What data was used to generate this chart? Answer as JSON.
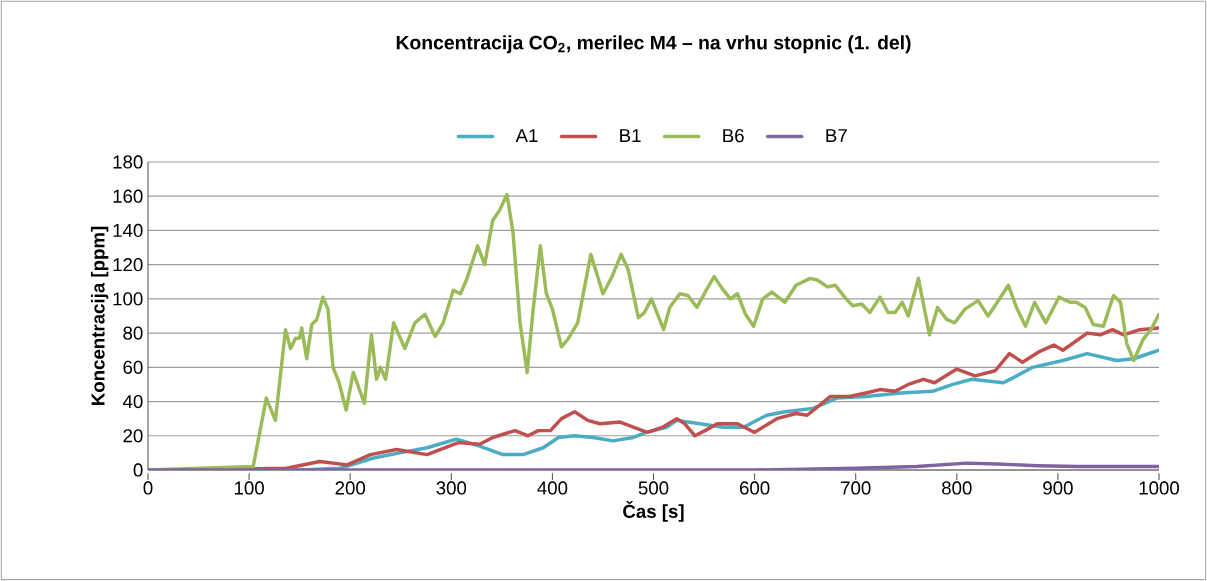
{
  "chart_data": {
    "type": "line",
    "title": "Koncentracija CO$_{2}$, merilec M4 – na vrhu stopnic (1. del)",
    "xlabel": "Čas [s]",
    "ylabel": "Koncentracija [ppm]",
    "xlim": [
      0,
      1000
    ],
    "ylim": [
      0,
      180
    ],
    "xticks": [
      0,
      100,
      200,
      300,
      400,
      500,
      600,
      700,
      800,
      900,
      1000
    ],
    "yticks": [
      0,
      20,
      40,
      60,
      80,
      100,
      120,
      140,
      160,
      180
    ],
    "grid": "y",
    "legend": "top",
    "marker": "none",
    "line_style": "solid",
    "series": [
      {
        "name": "A1",
        "color": "#4bacc6",
        "x": [
          0,
          150,
          190,
          223,
          249,
          276,
          305,
          328,
          351,
          371,
          391,
          406,
          422,
          440,
          460,
          480,
          493,
          513,
          523,
          546,
          569,
          589,
          612,
          630,
          658,
          681,
          710,
          744,
          776,
          796,
          815,
          846,
          856,
          875,
          905,
          929,
          958,
          975,
          1000
        ],
        "values": [
          0,
          0,
          1,
          7,
          10,
          13,
          18,
          14,
          9,
          9,
          13,
          19,
          20,
          19,
          17,
          19,
          22,
          25,
          29,
          27,
          25,
          25,
          32,
          34,
          36,
          42,
          43,
          45,
          46,
          50,
          53,
          51,
          54,
          60,
          64,
          68,
          64,
          65,
          70
        ]
      },
      {
        "name": "B1",
        "color": "#c0504d",
        "x": [
          0,
          137,
          170,
          197,
          220,
          246,
          276,
          307,
          328,
          341,
          363,
          376,
          386,
          398,
          409,
          422,
          435,
          447,
          467,
          480,
          494,
          509,
          523,
          531,
          541,
          551,
          563,
          583,
          600,
          622,
          641,
          652,
          675,
          694,
          710,
          724,
          739,
          752,
          767,
          778,
          800,
          818,
          838,
          852,
          865,
          881,
          896,
          905,
          929,
          942,
          954,
          965,
          981,
          1000
        ],
        "values": [
          0,
          1,
          5,
          3,
          9,
          12,
          9,
          16,
          15,
          19,
          23,
          20,
          23,
          23,
          30,
          34,
          29,
          27,
          28,
          25,
          22,
          25,
          30,
          27,
          20,
          23,
          27,
          27,
          22,
          30,
          33,
          32,
          43,
          43,
          45,
          47,
          46,
          50,
          53,
          51,
          59,
          55,
          58,
          68,
          63,
          69,
          73,
          70,
          80,
          79,
          82,
          79,
          82,
          83
        ]
      },
      {
        "name": "B6",
        "color": "#9bbb59",
        "x": [
          0,
          104,
          117,
          126,
          136,
          141,
          146,
          150,
          152,
          157,
          162,
          167,
          173,
          178,
          183,
          189,
          196,
          203,
          214,
          221,
          226,
          230,
          235,
          243,
          254,
          264,
          274,
          284,
          292,
          302,
          309,
          315,
          326,
          333,
          341,
          348,
          355,
          361,
          368,
          375,
          381,
          388,
          394,
          400,
          409,
          416,
          425,
          438,
          450,
          459,
          468,
          475,
          485,
          491,
          498,
          510,
          516,
          526,
          534,
          543,
          553,
          560,
          568,
          576,
          583,
          591,
          599,
          608,
          617,
          630,
          641,
          655,
          662,
          672,
          680,
          689,
          697,
          706,
          714,
          724,
          732,
          739,
          746,
          752,
          762,
          773,
          781,
          790,
          798,
          808,
          821,
          831,
          840,
          851,
          859,
          868,
          877,
          888,
          901,
          912,
          918,
          927,
          935,
          945,
          955,
          962,
          968,
          975,
          984,
          992,
          1000
        ],
        "values": [
          0,
          2,
          42,
          29,
          82,
          71,
          77,
          77,
          83,
          65,
          85,
          88,
          101,
          94,
          60,
          51,
          35,
          57,
          39,
          79,
          53,
          60,
          53,
          86,
          71,
          86,
          91,
          78,
          86,
          105,
          103,
          111,
          131,
          120,
          146,
          152,
          161,
          139,
          86,
          57,
          94,
          131,
          103,
          94,
          72,
          77,
          86,
          126,
          103,
          113,
          126,
          117,
          89,
          92,
          100,
          82,
          95,
          103,
          102,
          95,
          106,
          113,
          106,
          100,
          103,
          91,
          84,
          100,
          104,
          98,
          108,
          112,
          111,
          107,
          108,
          101,
          96,
          97,
          92,
          101,
          92,
          92,
          98,
          90,
          112,
          79,
          95,
          88,
          86,
          94,
          99,
          90,
          98,
          108,
          95,
          84,
          98,
          86,
          101,
          98,
          98,
          95,
          85,
          84,
          102,
          98,
          74,
          64,
          76,
          82,
          91
        ]
      },
      {
        "name": "B7",
        "color": "#8064a2",
        "x": [
          0,
          600,
          700,
          760,
          810,
          840,
          880,
          920,
          1000
        ],
        "values": [
          0,
          0,
          1,
          2,
          4,
          3.5,
          2.5,
          2,
          2
        ]
      }
    ]
  }
}
